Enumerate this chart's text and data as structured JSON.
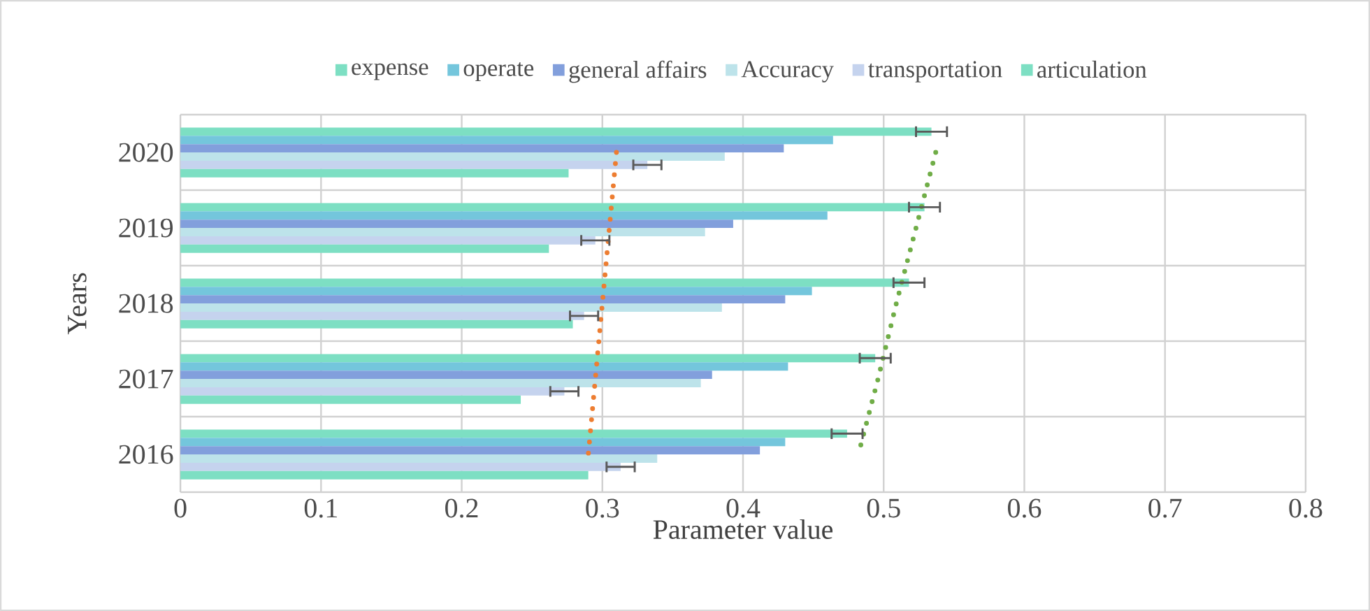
{
  "chart_data": {
    "type": "bar",
    "orientation": "horizontal",
    "xlabel": "Parameter value",
    "ylabel": "Years",
    "categories": [
      "2020",
      "2019",
      "2018",
      "2017",
      "2016"
    ],
    "xlim": [
      0,
      0.8
    ],
    "xticks": [
      0,
      0.1,
      0.2,
      0.3,
      0.4,
      0.5,
      0.6,
      0.7,
      0.8
    ],
    "grid": true,
    "legend": "top",
    "series": [
      {
        "name": "expense",
        "color": "#7ddfc3",
        "values": [
          0.534,
          0.529,
          0.518,
          0.494,
          0.474
        ],
        "errors": [
          0.011,
          0.011,
          0.011,
          0.011,
          0.011
        ]
      },
      {
        "name": "operate",
        "color": "#74c6dc",
        "values": [
          0.464,
          0.46,
          0.449,
          0.432,
          0.43
        ]
      },
      {
        "name": "general affairs",
        "color": "#829fdc",
        "values": [
          0.429,
          0.393,
          0.43,
          0.378,
          0.412
        ]
      },
      {
        "name": "Accuracy",
        "color": "#bde3ea",
        "values": [
          0.387,
          0.373,
          0.385,
          0.37,
          0.339
        ]
      },
      {
        "name": "transportation",
        "color": "#c5d3ee",
        "values": [
          0.332,
          0.295,
          0.287,
          0.273,
          0.313
        ],
        "errors": [
          0.01,
          0.01,
          0.01,
          0.01,
          0.01
        ]
      },
      {
        "name": "articulation",
        "color": "#7ddfc3",
        "values": [
          0.276,
          0.262,
          0.279,
          0.242,
          0.29
        ]
      },
      {
        "type": "line",
        "color": "#ed7d31",
        "line_style": "dotted",
        "values": [
          0.31,
          0.305,
          0.3,
          0.295,
          0.29
        ]
      },
      {
        "type": "line",
        "color": "#70ad47",
        "line_style": "dotted",
        "values": [
          0.537,
          0.523,
          0.509,
          0.496,
          0.482
        ]
      }
    ]
  }
}
